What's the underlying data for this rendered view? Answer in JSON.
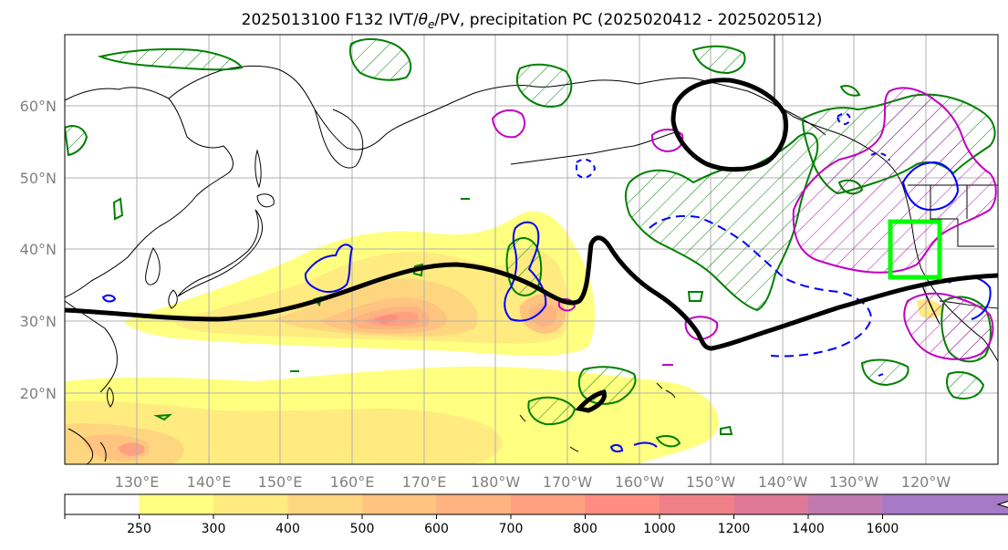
{
  "chart_data": {
    "type": "map",
    "title": "2025013100 F132 IVT/θe/PV, precipitation PC (2025020412 - 2025020512)",
    "title_parts": {
      "prefix": "2025013100 F132 IVT/",
      "theta": "θ",
      "theta_sub": "e",
      "suffix": "/PV, precipitation PC (2025020412 - 2025020512)"
    },
    "lat_ticks": [
      "20°N",
      "30°N",
      "40°N",
      "50°N",
      "60°N"
    ],
    "lat_values": [
      20,
      30,
      40,
      50,
      60
    ],
    "lon_ticks": [
      "130°E",
      "140°E",
      "150°E",
      "160°E",
      "170°E",
      "180°W",
      "170°W",
      "160°W",
      "150°W",
      "140°W",
      "130°W",
      "120°W"
    ],
    "lon_values": [
      130,
      140,
      150,
      160,
      170,
      180,
      190,
      200,
      210,
      220,
      230,
      240
    ],
    "extent": {
      "lon": [
        120,
        250
      ],
      "lat": [
        10,
        70
      ]
    },
    "grid": true,
    "colorbar": {
      "orientation": "horizontal",
      "extend": "max",
      "levels": [
        250,
        300,
        400,
        500,
        600,
        700,
        800,
        1000,
        1200,
        1400,
        1600
      ],
      "labels": [
        "250",
        "300",
        "400",
        "500",
        "600",
        "700",
        "800",
        "1000",
        "1200",
        "1400",
        "1600"
      ],
      "colors": [
        "#ffffff",
        "#ffff80",
        "#ffeb80",
        "#ffd680",
        "#ffc480",
        "#ffb380",
        "#ffa080",
        "#ff8c80",
        "#f08088",
        "#e07898",
        "#c07ab0",
        "#a67ac6"
      ]
    },
    "ivt_maxima": [
      {
        "lon": 163,
        "lat": 30.5,
        "value": 820
      },
      {
        "lon": 129,
        "lat": 12.5,
        "value": 720
      },
      {
        "lon": 185,
        "lat": 31,
        "value": 680
      }
    ],
    "target_box": {
      "lon": [
        237,
        244
      ],
      "lat": [
        36,
        44
      ],
      "color": "#00ff00"
    },
    "colors": {
      "pv_contour": "#000000",
      "theta_e_contour": "#0000ff",
      "precip_pos": "#008000",
      "precip_neg": "#c000c0",
      "coastline": "#000000",
      "grid": "#b0b0b0"
    }
  }
}
